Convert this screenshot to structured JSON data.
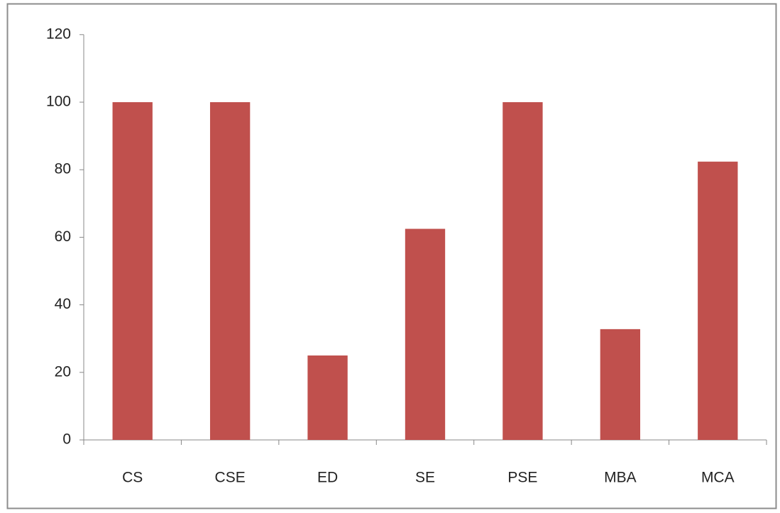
{
  "chart_data": {
    "type": "bar",
    "categories": [
      "CS",
      "CSE",
      "ED",
      "SE",
      "PSE",
      "MBA",
      "MCA"
    ],
    "values": [
      100,
      100,
      25,
      62.5,
      100,
      32.8,
      82.4
    ],
    "color": "#c0504d",
    "ylim": [
      0,
      120
    ],
    "yticks": [
      0,
      20,
      40,
      60,
      80,
      100,
      120
    ],
    "grid": false
  }
}
